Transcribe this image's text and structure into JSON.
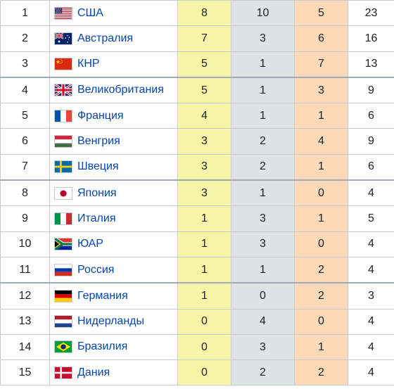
{
  "table": {
    "rows": [
      {
        "rank": "1",
        "country": "США",
        "flag": "usa-flag-icon",
        "gold": "8",
        "silver": "10",
        "bronze": "5",
        "total": "23"
      },
      {
        "rank": "2",
        "country": "Австралия",
        "flag": "australia-flag-icon",
        "gold": "7",
        "silver": "3",
        "bronze": "6",
        "total": "16"
      },
      {
        "rank": "3",
        "country": "КНР",
        "flag": "china-flag-icon",
        "gold": "5",
        "silver": "1",
        "bronze": "7",
        "total": "13"
      },
      {
        "rank": "4",
        "country": "Великобритания",
        "flag": "uk-flag-icon",
        "gold": "5",
        "silver": "1",
        "bronze": "3",
        "total": "9"
      },
      {
        "rank": "5",
        "country": "Франция",
        "flag": "france-flag-icon",
        "gold": "4",
        "silver": "1",
        "bronze": "1",
        "total": "6"
      },
      {
        "rank": "6",
        "country": "Венгрия",
        "flag": "hungary-flag-icon",
        "gold": "3",
        "silver": "2",
        "bronze": "4",
        "total": "9"
      },
      {
        "rank": "7",
        "country": "Швеция",
        "flag": "sweden-flag-icon",
        "gold": "3",
        "silver": "2",
        "bronze": "1",
        "total": "6"
      },
      {
        "rank": "8",
        "country": "Япония",
        "flag": "japan-flag-icon",
        "gold": "3",
        "silver": "1",
        "bronze": "0",
        "total": "4"
      },
      {
        "rank": "9",
        "country": "Италия",
        "flag": "italy-flag-icon",
        "gold": "1",
        "silver": "3",
        "bronze": "1",
        "total": "5"
      },
      {
        "rank": "10",
        "country": "ЮАР",
        "flag": "south-africa-flag-icon",
        "gold": "1",
        "silver": "3",
        "bronze": "0",
        "total": "4"
      },
      {
        "rank": "11",
        "country": "Россия",
        "flag": "russia-flag-icon",
        "gold": "1",
        "silver": "1",
        "bronze": "2",
        "total": "4"
      },
      {
        "rank": "12",
        "country": "Германия",
        "flag": "germany-flag-icon",
        "gold": "1",
        "silver": "0",
        "bronze": "2",
        "total": "3"
      },
      {
        "rank": "13",
        "country": "Нидерланды",
        "flag": "netherlands-flag-icon",
        "gold": "0",
        "silver": "4",
        "bronze": "0",
        "total": "4"
      },
      {
        "rank": "14",
        "country": "Бразилия",
        "flag": "brazil-flag-icon",
        "gold": "0",
        "silver": "3",
        "bronze": "1",
        "total": "4"
      },
      {
        "rank": "15",
        "country": "Дания",
        "flag": "denmark-flag-icon",
        "gold": "0",
        "silver": "2",
        "bronze": "2",
        "total": "4"
      }
    ]
  },
  "colors": {
    "gold_cell": "#f8f5a8",
    "silver_cell": "#dfe3e4",
    "bronze_cell": "#fcd9b8",
    "link": "#0645ad"
  }
}
